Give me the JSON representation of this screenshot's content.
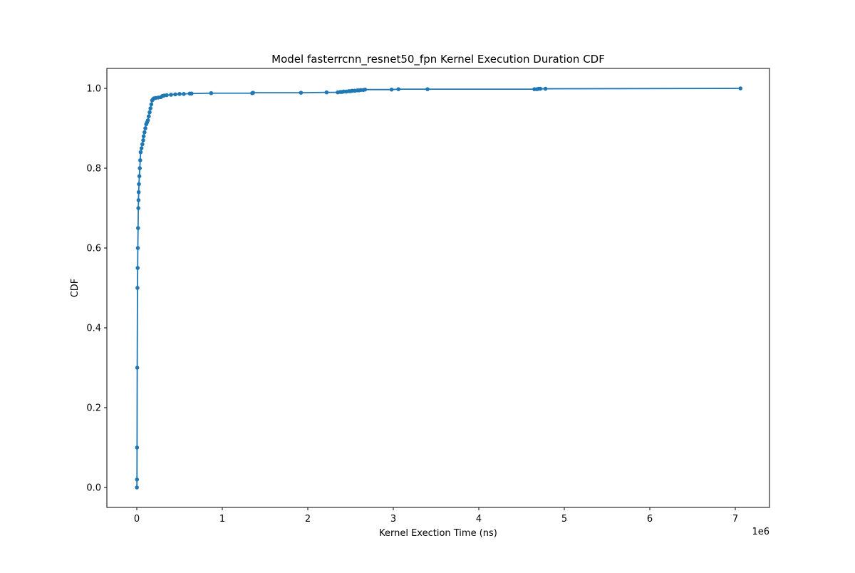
{
  "chart_data": {
    "type": "line",
    "title": "Model fasterrcnn_resnet50_fpn Kernel Execution Duration CDF",
    "xlabel": "Kernel Exection Time (ns)",
    "ylabel": "CDF",
    "x_offset_label": "1e6",
    "x_scale": 1000000,
    "xlim": [
      -350000,
      7400000
    ],
    "ylim": [
      -0.05,
      1.05
    ],
    "x_ticks": [
      0,
      1000000,
      2000000,
      3000000,
      4000000,
      5000000,
      6000000,
      7000000
    ],
    "x_tick_labels": [
      "0",
      "1",
      "2",
      "3",
      "4",
      "5",
      "6",
      "7"
    ],
    "y_ticks": [
      0.0,
      0.2,
      0.4,
      0.6,
      0.8,
      1.0
    ],
    "y_tick_labels": [
      "0.0",
      "0.2",
      "0.4",
      "0.6",
      "0.8",
      "1.0"
    ],
    "grid": false,
    "legend": "none",
    "marker": "circle",
    "series_color": "#1f77b4",
    "series": [
      {
        "x": [
          1000,
          2000,
          3000,
          5000,
          8000,
          10000,
          12000,
          15000,
          18000,
          20000,
          22000,
          25000,
          30000,
          35000,
          40000,
          45000,
          55000,
          65000,
          75000,
          80000,
          90000,
          100000,
          110000,
          120000,
          130000,
          140000,
          150000,
          160000,
          170000,
          180000,
          190000,
          200000,
          220000,
          250000,
          280000,
          300000,
          320000,
          350000,
          400000,
          450000,
          500000,
          550000,
          620000,
          640000,
          870000,
          1350000,
          1360000,
          1920000,
          2220000,
          2350000,
          2380000,
          2400000,
          2420000,
          2450000,
          2480000,
          2500000,
          2520000,
          2550000,
          2580000,
          2600000,
          2620000,
          2650000,
          2670000,
          2980000,
          3060000,
          3400000,
          4650000,
          4680000,
          4700000,
          4720000,
          4780000,
          7060000
        ],
        "y": [
          0.0,
          0.02,
          0.1,
          0.3,
          0.5,
          0.55,
          0.6,
          0.65,
          0.7,
          0.72,
          0.74,
          0.76,
          0.78,
          0.8,
          0.82,
          0.84,
          0.85,
          0.86,
          0.87,
          0.88,
          0.89,
          0.9,
          0.91,
          0.915,
          0.92,
          0.93,
          0.94,
          0.95,
          0.96,
          0.97,
          0.973,
          0.975,
          0.976,
          0.977,
          0.978,
          0.981,
          0.982,
          0.983,
          0.984,
          0.985,
          0.986,
          0.986,
          0.987,
          0.987,
          0.988,
          0.988,
          0.989,
          0.989,
          0.99,
          0.99,
          0.991,
          0.991,
          0.992,
          0.992,
          0.993,
          0.993,
          0.994,
          0.994,
          0.995,
          0.995,
          0.996,
          0.996,
          0.997,
          0.997,
          0.998,
          0.998,
          0.998,
          0.998,
          0.999,
          0.999,
          0.999,
          1.0
        ]
      }
    ]
  }
}
